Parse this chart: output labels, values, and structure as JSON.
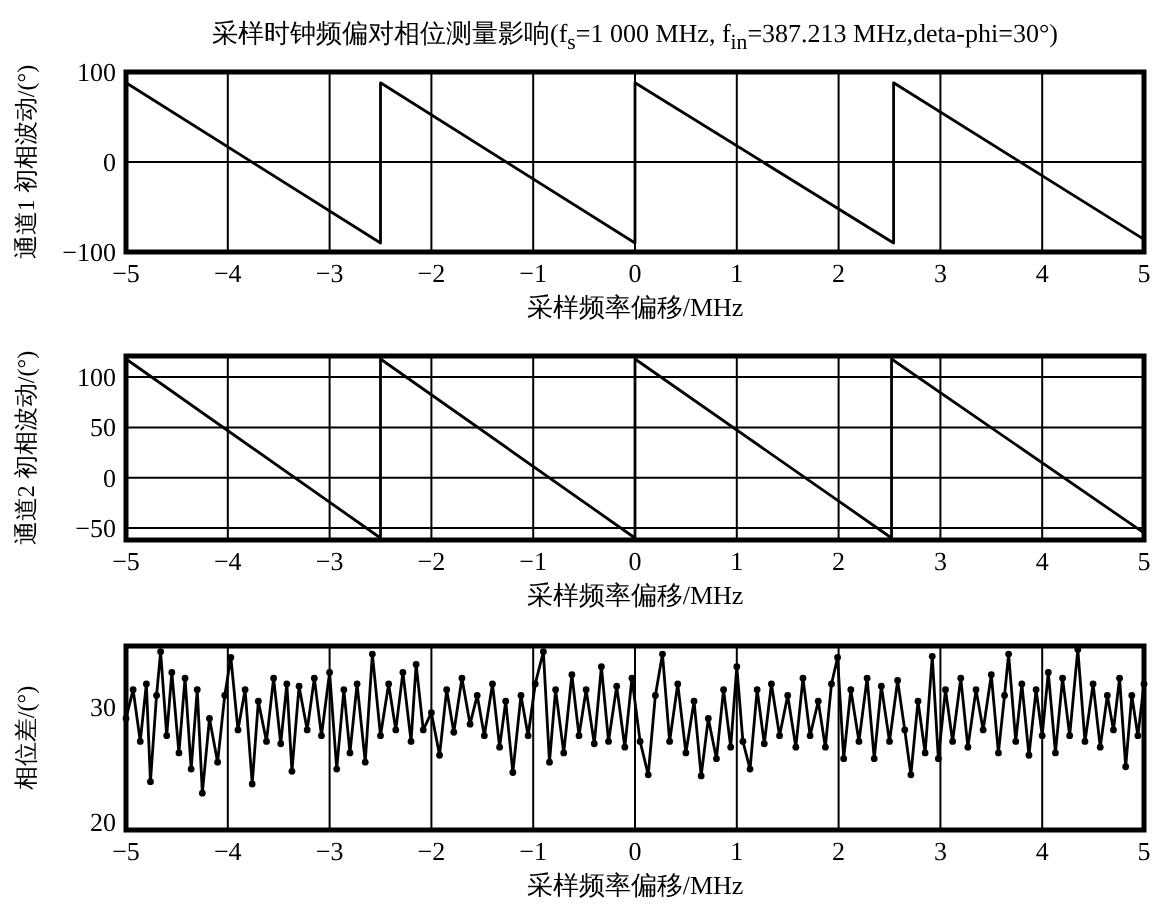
{
  "chart_data": [
    {
      "type": "line",
      "title": "采样时钟频偏对相位测量影响(f$_{s}$=1 000 MHz, f$_{in}$=387.213 MHz,deta-phi=30°)",
      "xlabel": "采样频率偏移/MHz",
      "ylabel": "通道1 初相波动/(°)",
      "xlim": [
        -5,
        5
      ],
      "xticks": [
        -5,
        -4,
        -3,
        -2,
        -1,
        0,
        1,
        2,
        3,
        4,
        5
      ],
      "ylim": [
        -100,
        100
      ],
      "yticks": [
        -100,
        0,
        100
      ],
      "grid": true,
      "series": [
        {
          "color": "#000000",
          "x": [
            -5,
            -2.5,
            -2.5,
            0,
            0,
            2.54,
            2.54,
            5
          ],
          "values": [
            88,
            -90,
            88,
            -90,
            88,
            -90,
            88,
            -86
          ]
        }
      ]
    },
    {
      "type": "line",
      "xlabel": "采样频率偏移/MHz",
      "ylabel": "通道2 初相波动/(°)",
      "xlim": [
        -5,
        5
      ],
      "xticks": [
        -5,
        -4,
        -3,
        -2,
        -1,
        0,
        1,
        2,
        3,
        4,
        5
      ],
      "ylim": [
        -62,
        121
      ],
      "yticks": [
        -50,
        0,
        50,
        100
      ],
      "grid": true,
      "series": [
        {
          "color": "#000000",
          "x": [
            -5,
            -2.5,
            -2.5,
            0,
            0,
            2.52,
            2.52,
            5
          ],
          "values": [
            118,
            -60,
            118,
            -60,
            118,
            -60,
            118,
            -55
          ]
        }
      ]
    },
    {
      "type": "line",
      "xlabel": "采样频率偏移/MHz",
      "ylabel": "相位差/(°)",
      "xlim": [
        -5,
        5
      ],
      "xticks": [
        -5,
        -4,
        -3,
        -2,
        -1,
        0,
        1,
        2,
        3,
        4,
        5
      ],
      "ylim": [
        19.3,
        35.3
      ],
      "yticks": [
        20,
        30
      ],
      "grid": "x",
      "marker": "circle",
      "series": [
        {
          "color": "#000000",
          "x": [
            -5.0,
            -4.93,
            -4.86,
            -4.8,
            -4.76,
            -4.7,
            -4.66,
            -4.6,
            -4.55,
            -4.48,
            -4.42,
            -4.36,
            -4.3,
            -4.25,
            -4.18,
            -4.1,
            -4.03,
            -3.97,
            -3.9,
            -3.83,
            -3.76,
            -3.7,
            -3.62,
            -3.55,
            -3.48,
            -3.42,
            -3.37,
            -3.3,
            -3.22,
            -3.15,
            -3.08,
            -3.0,
            -2.93,
            -2.86,
            -2.8,
            -2.73,
            -2.65,
            -2.58,
            -2.5,
            -2.42,
            -2.35,
            -2.28,
            -2.2,
            -2.15,
            -2.08,
            -2.0,
            -1.92,
            -1.85,
            -1.78,
            -1.7,
            -1.62,
            -1.55,
            -1.48,
            -1.4,
            -1.33,
            -1.27,
            -1.2,
            -1.12,
            -1.05,
            -0.98,
            -0.9,
            -0.84,
            -0.78,
            -0.7,
            -0.62,
            -0.55,
            -0.48,
            -0.4,
            -0.33,
            -0.26,
            -0.18,
            -0.1,
            -0.03,
            0.05,
            0.13,
            0.2,
            0.27,
            0.34,
            0.42,
            0.5,
            0.58,
            0.65,
            0.72,
            0.8,
            0.87,
            0.94,
            1.0,
            1.06,
            1.13,
            1.2,
            1.27,
            1.34,
            1.42,
            1.5,
            1.58,
            1.65,
            1.72,
            1.8,
            1.87,
            1.93,
            1.99,
            2.05,
            2.12,
            2.2,
            2.28,
            2.35,
            2.42,
            2.5,
            2.58,
            2.65,
            2.71,
            2.78,
            2.85,
            2.92,
            2.98,
            3.05,
            3.12,
            3.2,
            3.27,
            3.35,
            3.42,
            3.5,
            3.57,
            3.63,
            3.67,
            3.74,
            3.8,
            3.87,
            3.94,
            4.0,
            4.06,
            4.13,
            4.2,
            4.27,
            4.35,
            4.42,
            4.5,
            4.57,
            4.64,
            4.7,
            4.76,
            4.82,
            4.88,
            4.94,
            5.0
          ],
          "values": [
            29,
            31.5,
            27,
            32,
            23.5,
            31,
            34.8,
            27.5,
            33,
            26,
            32.5,
            24.6,
            31.5,
            22.5,
            29,
            25.2,
            31,
            34.3,
            28,
            31.5,
            23.3,
            30.5,
            27,
            32.5,
            26.8,
            32,
            24.4,
            31.8,
            28,
            32.5,
            27.5,
            33,
            24.6,
            31.5,
            26,
            32,
            25.2,
            34.6,
            27.5,
            32,
            28,
            33,
            27,
            33.7,
            28,
            29.5,
            25.8,
            31.5,
            27.8,
            32.5,
            28.5,
            31,
            27.5,
            32,
            26.5,
            30.5,
            24.3,
            31,
            27.5,
            32,
            34.8,
            25.2,
            31.5,
            26,
            32.8,
            27.5,
            31.5,
            26.8,
            33.5,
            27,
            31.8,
            26.5,
            32.5,
            27,
            24.1,
            31,
            34.6,
            27,
            32,
            26,
            30.5,
            24,
            29,
            25.5,
            31.5,
            26.5,
            33.5,
            27,
            24.6,
            31.5,
            26.8,
            32,
            27.5,
            31,
            26.5,
            32.5,
            27.5,
            30.5,
            26.5,
            32,
            34.3,
            25.5,
            31.5,
            27,
            32.5,
            25.5,
            31.8,
            27,
            32.3,
            28,
            24.1,
            30.5,
            26,
            34.4,
            25.5,
            31.5,
            27,
            32.5,
            26.5,
            31.5,
            28,
            32.8,
            26,
            31,
            34.6,
            27,
            32,
            25.8,
            31.5,
            27.5,
            33,
            26,
            32.5,
            27.5,
            35,
            27,
            32,
            26.5,
            31,
            28,
            32.5,
            24.8,
            31,
            27.5,
            32
          ]
        }
      ]
    }
  ]
}
